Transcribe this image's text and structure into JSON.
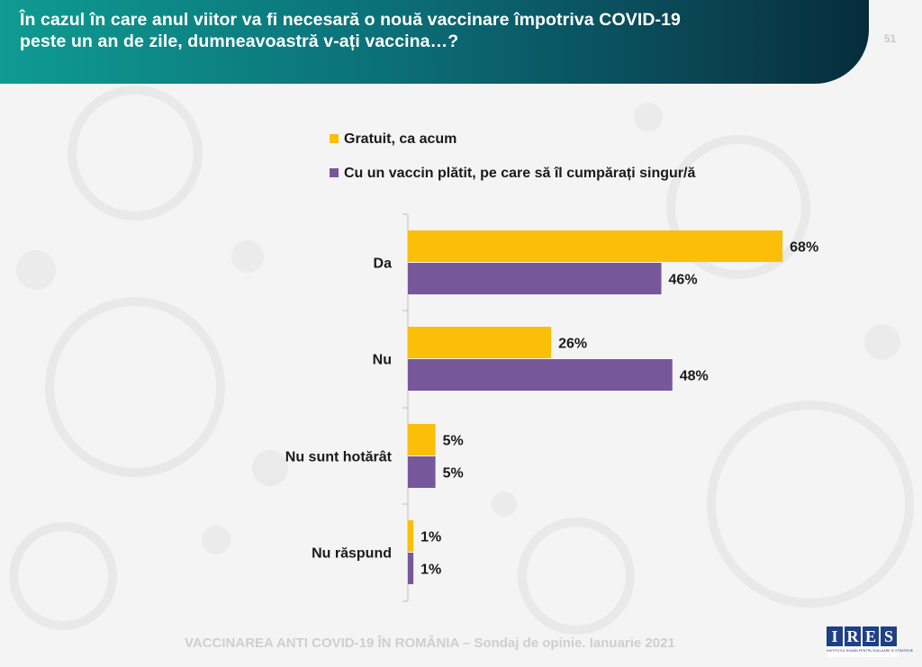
{
  "page": {
    "title_line1": "În cazul în care anul viitor va fi necesară o nouă vaccinare împotriva COVID-19",
    "title_line2": "peste un an de zile, dumneavoastră v-ați vaccina…?",
    "page_number": "51",
    "footer": "VACCINAREA ANTI COVID-19 ÎN ROMÂNIA – Sondaj de opinie. Ianuarie 2021",
    "logo_letters": [
      "I",
      "R",
      "E",
      "S"
    ],
    "logo_subtitle": "INSTITUTUL ROMÂN PENTRU EVALUARE ȘI STRATEGIE"
  },
  "colors": {
    "series1": "#fbbf0a",
    "series2": "#76589a",
    "axis": "#bfbfbf",
    "text": "#1a1a1a"
  },
  "chart_data": {
    "type": "bar",
    "orientation": "horizontal",
    "categories": [
      "Da",
      "Nu",
      "Nu sunt hotărât",
      "Nu răspund"
    ],
    "series": [
      {
        "name": "Gratuit, ca acum",
        "values": [
          68,
          26,
          5,
          1
        ],
        "labels": [
          "68%",
          "26%",
          "5%",
          "1%"
        ]
      },
      {
        "name": "Cu un vaccin plătit, pe care să îl cumpărați singur/ă",
        "values": [
          46,
          48,
          5,
          1
        ],
        "labels": [
          "46%",
          "48%",
          "5%",
          "1%"
        ]
      }
    ],
    "unit": "%",
    "xlim": [
      0,
      100
    ],
    "legend_position": "top",
    "grid": false
  }
}
